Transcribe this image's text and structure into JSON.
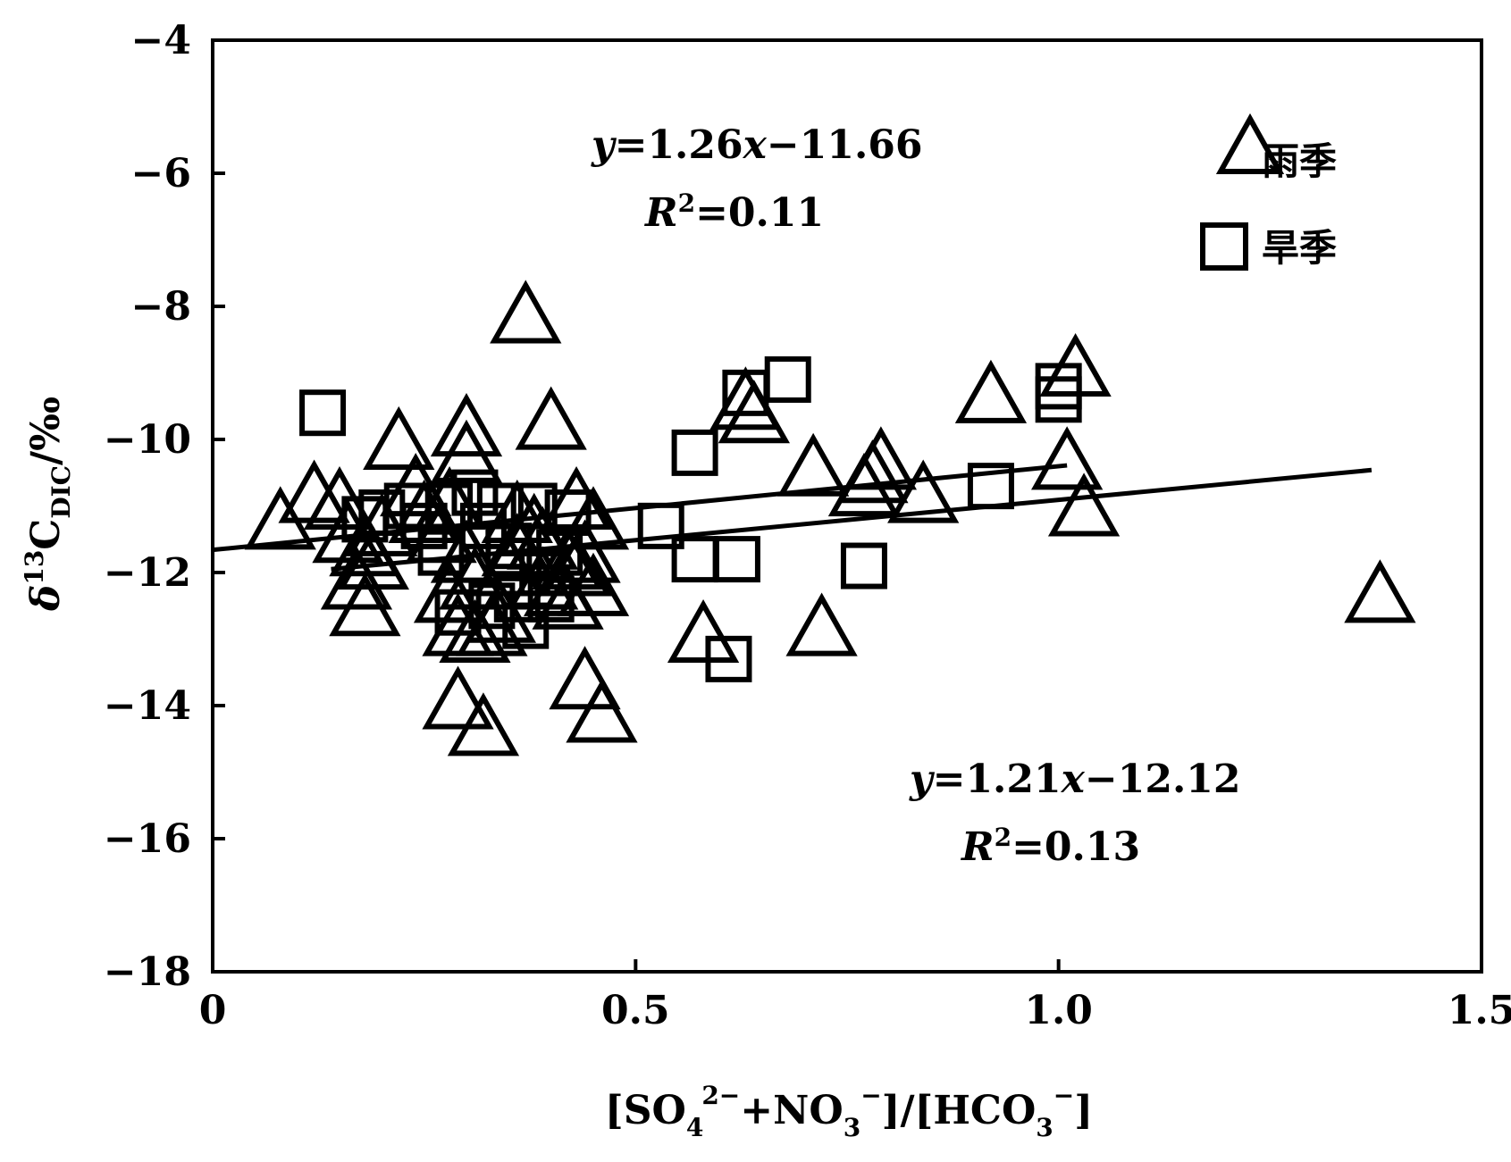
{
  "chart_data": {
    "type": "scatter",
    "xlim": [
      0,
      1.5
    ],
    "ylim": [
      -18,
      -4
    ],
    "x_ticks": [
      "0",
      "0.5",
      "1.0",
      "1.5"
    ],
    "x_tick_values": [
      0,
      0.5,
      1.0,
      1.5
    ],
    "y_ticks": [
      "−4",
      "−6",
      "−8",
      "−10",
      "−12",
      "−14",
      "−16",
      "−18"
    ],
    "y_tick_values": [
      -4,
      -6,
      -8,
      -10,
      -12,
      -14,
      -16,
      -18
    ],
    "xlabel": {
      "parts": [
        "[SO",
        "4",
        "2−",
        "+NO",
        "3",
        "−",
        "]/[HCO",
        "3",
        "−",
        "]"
      ]
    },
    "ylabel": {
      "parts": [
        "δ",
        "13",
        "C",
        "DIC",
        "/‰"
      ]
    },
    "grid": false,
    "legend_position": "top-right",
    "legend": [
      {
        "marker": "triangle",
        "label": "雨季"
      },
      {
        "marker": "square",
        "label": "旱季"
      }
    ],
    "annotations": [
      {
        "id": "eq-rainy",
        "line1": {
          "y": "y",
          "eq": "=1.26",
          "x": "x",
          "rest": "−11.66"
        },
        "line2": {
          "r": "R",
          "sup": "2",
          "val": "=0.11"
        }
      },
      {
        "id": "eq-dry",
        "line1": {
          "y": "y",
          "eq": "=1.21",
          "x": "x",
          "rest": "−12.12"
        },
        "line2": {
          "r": "R",
          "sup": "2",
          "val": "=0.13"
        }
      }
    ],
    "series": [
      {
        "marker": "triangle",
        "points": [
          [
            0.08,
            -11.3
          ],
          [
            0.12,
            -10.9
          ],
          [
            0.15,
            -11.0
          ],
          [
            0.16,
            -11.5
          ],
          [
            0.17,
            -12.2
          ],
          [
            0.18,
            -12.6
          ],
          [
            0.18,
            -11.7
          ],
          [
            0.19,
            -11.9
          ],
          [
            0.2,
            -11.4
          ],
          [
            0.22,
            -10.1
          ],
          [
            0.24,
            -10.8
          ],
          [
            0.25,
            -11.2
          ],
          [
            0.27,
            -11.5
          ],
          [
            0.28,
            -11.0
          ],
          [
            0.28,
            -12.4
          ],
          [
            0.29,
            -12.9
          ],
          [
            0.29,
            -14.0
          ],
          [
            0.3,
            -9.9
          ],
          [
            0.3,
            -10.3
          ],
          [
            0.3,
            -11.8
          ],
          [
            0.31,
            -12.2
          ],
          [
            0.31,
            -13.0
          ],
          [
            0.32,
            -14.4
          ],
          [
            0.33,
            -12.9
          ],
          [
            0.34,
            -12.7
          ],
          [
            0.35,
            -12.0
          ],
          [
            0.36,
            -11.7
          ],
          [
            0.36,
            -11.2
          ],
          [
            0.37,
            -8.2
          ],
          [
            0.38,
            -11.4
          ],
          [
            0.39,
            -12.2
          ],
          [
            0.39,
            -11.6
          ],
          [
            0.4,
            -9.8
          ],
          [
            0.41,
            -12.3
          ],
          [
            0.42,
            -11.9
          ],
          [
            0.42,
            -12.5
          ],
          [
            0.43,
            -11.0
          ],
          [
            0.43,
            -12.0
          ],
          [
            0.44,
            -13.7
          ],
          [
            0.44,
            -11.8
          ],
          [
            0.45,
            -12.3
          ],
          [
            0.45,
            -11.3
          ],
          [
            0.46,
            -14.2
          ],
          [
            0.58,
            -13.0
          ],
          [
            0.63,
            -9.5
          ],
          [
            0.64,
            -9.7
          ],
          [
            0.71,
            -10.5
          ],
          [
            0.72,
            -12.9
          ],
          [
            0.77,
            -10.8
          ],
          [
            0.78,
            -10.6
          ],
          [
            0.79,
            -10.4
          ],
          [
            0.84,
            -10.9
          ],
          [
            0.92,
            -9.4
          ],
          [
            1.01,
            -10.4
          ],
          [
            1.02,
            -9.0
          ],
          [
            1.03,
            -11.1
          ],
          [
            1.38,
            -12.4
          ]
        ]
      },
      {
        "marker": "square",
        "points": [
          [
            0.13,
            -9.6
          ],
          [
            0.18,
            -11.2
          ],
          [
            0.2,
            -11.1
          ],
          [
            0.23,
            -11.0
          ],
          [
            0.25,
            -11.3
          ],
          [
            0.27,
            -11.7
          ],
          [
            0.28,
            -11.0
          ],
          [
            0.29,
            -12.6
          ],
          [
            0.31,
            -10.8
          ],
          [
            0.32,
            -11.3
          ],
          [
            0.33,
            -12.5
          ],
          [
            0.34,
            -11.0
          ],
          [
            0.35,
            -11.6
          ],
          [
            0.36,
            -12.4
          ],
          [
            0.37,
            -12.8
          ],
          [
            0.38,
            -11.0
          ],
          [
            0.39,
            -12.0
          ],
          [
            0.4,
            -12.4
          ],
          [
            0.41,
            -11.7
          ],
          [
            0.42,
            -11.1
          ],
          [
            0.53,
            -11.3
          ],
          [
            0.57,
            -10.2
          ],
          [
            0.57,
            -11.8
          ],
          [
            0.61,
            -13.3
          ],
          [
            0.62,
            -11.8
          ],
          [
            0.63,
            -9.3
          ],
          [
            0.68,
            -9.1
          ],
          [
            0.77,
            -11.9
          ],
          [
            0.92,
            -10.7
          ],
          [
            1.0,
            -9.2
          ],
          [
            1.0,
            -9.4
          ]
        ]
      }
    ],
    "fit_lines": [
      {
        "name_ref": "rainy",
        "x": [
          0,
          1.01
        ],
        "y": [
          -11.66,
          -10.39
        ]
      },
      {
        "name_ref": "dry",
        "x": [
          0.14,
          1.37
        ],
        "y": [
          -11.95,
          -10.46
        ]
      }
    ]
  }
}
